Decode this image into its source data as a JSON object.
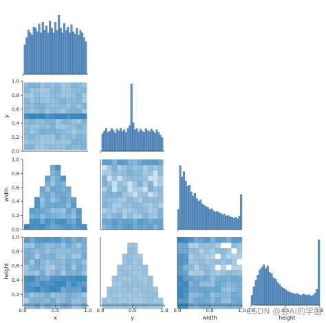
{
  "chart_data": {
    "type": "pairplot",
    "variables": [
      "x",
      "y",
      "width",
      "height"
    ],
    "xlabels": [
      "x",
      "y",
      "width",
      "height"
    ],
    "ylabels": [
      "",
      "y",
      "width",
      "height"
    ],
    "tick_values": [
      0.0,
      0.5,
      1.0
    ],
    "tick_labels": [
      "0.0",
      "0.5",
      "1.0"
    ],
    "y_tick_values": [
      0.0,
      0.2,
      0.4,
      0.6,
      0.8,
      1.0
    ],
    "y_tick_labels": [
      "0.0",
      "0.2",
      "0.4",
      "0.6",
      "0.8",
      "1.0"
    ],
    "height_y_tick_values": [
      0.2,
      0.4,
      0.6,
      0.8,
      1.0
    ],
    "height_y_tick_labels": [
      "0.2",
      "0.4",
      "0.6",
      "0.8",
      "1.0"
    ],
    "diagonal_histograms": [
      {
        "variable": "x",
        "bin_edges": [
          0.02,
          0.98
        ],
        "density": [
          0.5,
          0.62,
          0.75,
          0.7,
          0.66,
          0.8,
          0.78,
          0.72,
          0.85,
          0.7,
          0.88,
          0.74,
          0.82,
          0.7,
          0.9,
          0.78,
          0.7,
          0.88,
          0.74,
          1.0,
          0.78,
          0.7,
          0.86,
          0.74,
          0.8,
          0.7,
          0.84,
          0.72,
          0.68,
          0.78,
          0.66,
          0.74,
          0.7,
          0.62,
          0.55
        ]
      },
      {
        "variable": "y",
        "bin_edges": [
          0.02,
          0.98
        ],
        "density": [
          0.26,
          0.3,
          0.34,
          0.28,
          0.3,
          0.34,
          0.31,
          0.27,
          0.33,
          0.3,
          0.34,
          0.29,
          0.32,
          0.28,
          0.34,
          0.38,
          1.0,
          0.42,
          0.32,
          0.34,
          0.29,
          0.33,
          0.3,
          0.28,
          0.34,
          0.31,
          0.29,
          0.33,
          0.3,
          0.27,
          0.32,
          0.28,
          0.24,
          0.2
        ]
      },
      {
        "variable": "width",
        "bin_edges": [
          0.0,
          1.0
        ],
        "density": [
          0.3,
          0.95,
          0.78,
          0.86,
          0.72,
          0.64,
          0.66,
          0.56,
          0.5,
          0.54,
          0.46,
          0.42,
          0.44,
          0.38,
          0.36,
          0.34,
          0.33,
          0.3,
          0.31,
          0.28,
          0.26,
          0.27,
          0.25,
          0.24,
          0.22,
          0.23,
          0.2,
          0.21,
          0.19,
          0.18,
          0.17,
          0.18,
          0.16,
          0.2,
          0.52
        ]
      },
      {
        "variable": "height",
        "bin_edges": [
          0.0,
          1.0
        ],
        "density": [
          0.15,
          0.28,
          0.38,
          0.46,
          0.54,
          0.58,
          0.62,
          0.56,
          0.6,
          0.5,
          0.48,
          0.42,
          0.4,
          0.35,
          0.32,
          0.28,
          0.26,
          0.24,
          0.22,
          0.2,
          0.19,
          0.18,
          0.17,
          0.18,
          0.16,
          0.15,
          0.17,
          0.16,
          0.15,
          0.16,
          0.14,
          0.15,
          0.18,
          0.24,
          1.0
        ]
      }
    ],
    "colors": {
      "bar_fill": "#5f93c3",
      "bar_edge": "#2c5d8a",
      "heat_rgb": [
        31,
        119,
        180
      ],
      "axis": "#333333"
    },
    "watermark": "CSDN @会AI的学姐"
  }
}
